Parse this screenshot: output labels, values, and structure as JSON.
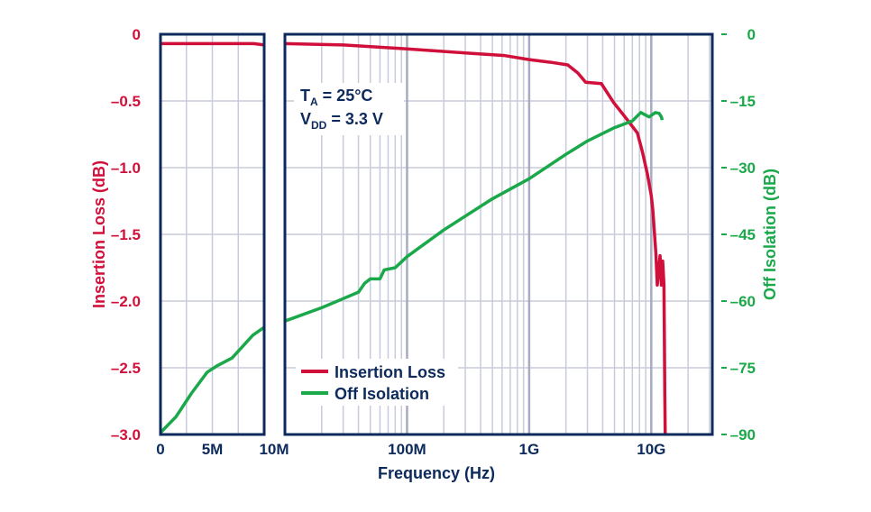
{
  "chart_data": {
    "type": "line",
    "xlabel": "Frequency (Hz)",
    "ylabel_left": "Insertion Loss (dB)",
    "ylabel_right": "Off Isolation (dB)",
    "x_panels": [
      {
        "scale": "linear",
        "range": [
          0,
          10000000
        ],
        "tick_labels": [
          "0",
          "5M",
          "10M"
        ],
        "ticks": [
          0,
          5000000,
          10000000
        ]
      },
      {
        "scale": "log",
        "range": [
          10000000,
          31600000000
        ],
        "tick_labels": [
          "100M",
          "1G",
          "10G"
        ],
        "ticks": [
          100000000,
          1000000000,
          10000000000
        ]
      }
    ],
    "y_left": {
      "range": [
        -3.0,
        0
      ],
      "tick_labels": [
        "0",
        "–0.5",
        "–1.0",
        "–1.5",
        "–2.0",
        "–2.5",
        "–3.0"
      ],
      "ticks": [
        0,
        -0.5,
        -1.0,
        -1.5,
        -2.0,
        -2.5,
        -3.0
      ]
    },
    "y_right": {
      "range": [
        -90,
        0
      ],
      "tick_labels": [
        "0",
        "–15",
        "–30",
        "–45",
        "–60",
        "–75",
        "–90"
      ],
      "ticks": [
        0,
        -15,
        -30,
        -45,
        -60,
        -75,
        -90
      ]
    },
    "grid": true,
    "legend_placement": "bottom-left",
    "annotation": {
      "ta_main": "T",
      "ta_sub": "A",
      "ta_rest": " = 25°C",
      "vdd_main": "V",
      "vdd_sub": "DD",
      "vdd_rest": " = 3.3 V"
    },
    "series": [
      {
        "name": "Insertion Loss",
        "axis": "left",
        "color": "#d0103a",
        "points": [
          [
            0,
            -0.07
          ],
          [
            5000000,
            -0.07
          ],
          [
            9000000,
            -0.07
          ],
          [
            10000000,
            -0.08
          ],
          [
            10000000,
            -0.07
          ],
          [
            30000000,
            -0.08
          ],
          [
            100000000,
            -0.11
          ],
          [
            300000000,
            -0.14
          ],
          [
            631000000,
            -0.16
          ],
          [
            1000000000,
            -0.19
          ],
          [
            1500000000,
            -0.21
          ],
          [
            2070000000,
            -0.23
          ],
          [
            2500000000,
            -0.29
          ],
          [
            2900000000,
            -0.36
          ],
          [
            3900000000,
            -0.37
          ],
          [
            4900000000,
            -0.51
          ],
          [
            6100000000,
            -0.62
          ],
          [
            7700000000,
            -0.74
          ],
          [
            8500000000,
            -0.89
          ],
          [
            9300000000,
            -1.05
          ],
          [
            10000000000,
            -1.21
          ],
          [
            10300000000,
            -1.32
          ],
          [
            10900000000,
            -1.64
          ],
          [
            11200000000,
            -1.88
          ],
          [
            11800000000,
            -1.66
          ],
          [
            12100000000,
            -1.88
          ],
          [
            12400000000,
            -1.7
          ],
          [
            12700000000,
            -1.88
          ],
          [
            12800000000,
            -2.26
          ],
          [
            12900000000,
            -2.7
          ],
          [
            13000000000,
            -2.99
          ]
        ]
      },
      {
        "name": "Off Isolation",
        "axis": "right",
        "color": "#1aa84a",
        "points": [
          [
            0,
            -89.6
          ],
          [
            1500000,
            -86
          ],
          [
            3000000,
            -80.7
          ],
          [
            4500000,
            -76
          ],
          [
            5500000,
            -74.5
          ],
          [
            6900000,
            -72.8
          ],
          [
            8000000,
            -70
          ],
          [
            8900000,
            -67.7
          ],
          [
            10000000,
            -65.9
          ],
          [
            10000000,
            -64.5
          ],
          [
            20000000,
            -61.5
          ],
          [
            40000000,
            -58
          ],
          [
            45000000,
            -56
          ],
          [
            50000000,
            -55
          ],
          [
            60000000,
            -55
          ],
          [
            65000000,
            -53
          ],
          [
            80000000,
            -52.5
          ],
          [
            100000000,
            -50
          ],
          [
            200000000,
            -44
          ],
          [
            500000000,
            -37
          ],
          [
            1000000000,
            -32.5
          ],
          [
            2000000000,
            -27
          ],
          [
            3000000000,
            -24
          ],
          [
            5000000000,
            -21
          ],
          [
            7000000000,
            -19.5
          ],
          [
            8200000000,
            -17.6
          ],
          [
            9600000000,
            -18.6
          ],
          [
            10800000000,
            -17.6
          ],
          [
            11600000000,
            -17.8
          ],
          [
            12100000000,
            -18.6
          ],
          [
            12300000000,
            -19.3
          ]
        ]
      }
    ]
  }
}
